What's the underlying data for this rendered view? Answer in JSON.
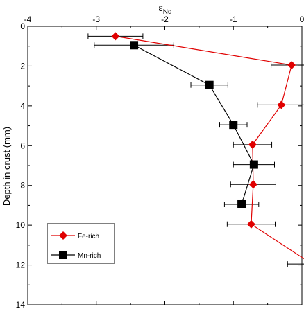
{
  "chart_data": {
    "type": "scatter",
    "xlabel": "εNd",
    "xlabel_main": "ε",
    "xlabel_sub": "Nd",
    "ylabel": "Depth in crust (mm)",
    "x_axis_position": "top",
    "y_axis_inverted": true,
    "xlim": [
      -4,
      0
    ],
    "ylim": [
      0,
      14
    ],
    "x_ticks": [
      -4,
      -3,
      -2,
      -1,
      0
    ],
    "y_ticks": [
      0,
      2,
      4,
      6,
      8,
      10,
      12,
      14
    ],
    "grid": false,
    "legend_position": "lower-left",
    "series": [
      {
        "name": "Fe-rich",
        "color": "#e00000",
        "marker": "diamond",
        "points": [
          {
            "x": -2.72,
            "y": 0.5,
            "err": 0.4
          },
          {
            "x": -0.15,
            "y": 1.95,
            "err": 0.3
          },
          {
            "x": -0.3,
            "y": 3.95,
            "err": 0.35
          },
          {
            "x": -0.72,
            "y": 5.95,
            "err": 0.28
          },
          {
            "x": -0.71,
            "y": 7.95,
            "err": 0.33
          },
          {
            "x": -0.74,
            "y": 9.95,
            "err": 0.35
          },
          {
            "x": 0.15,
            "y": 11.95,
            "err": 0.36
          }
        ]
      },
      {
        "name": "Mn-rich",
        "color": "#000000",
        "marker": "square",
        "points": [
          {
            "x": -2.45,
            "y": 0.95,
            "err": 0.58
          },
          {
            "x": -1.35,
            "y": 2.95,
            "err": 0.27
          },
          {
            "x": -1.0,
            "y": 4.95,
            "err": 0.2
          },
          {
            "x": -0.7,
            "y": 6.95,
            "err": 0.3
          },
          {
            "x": -0.88,
            "y": 8.95,
            "err": 0.25
          }
        ]
      }
    ]
  }
}
